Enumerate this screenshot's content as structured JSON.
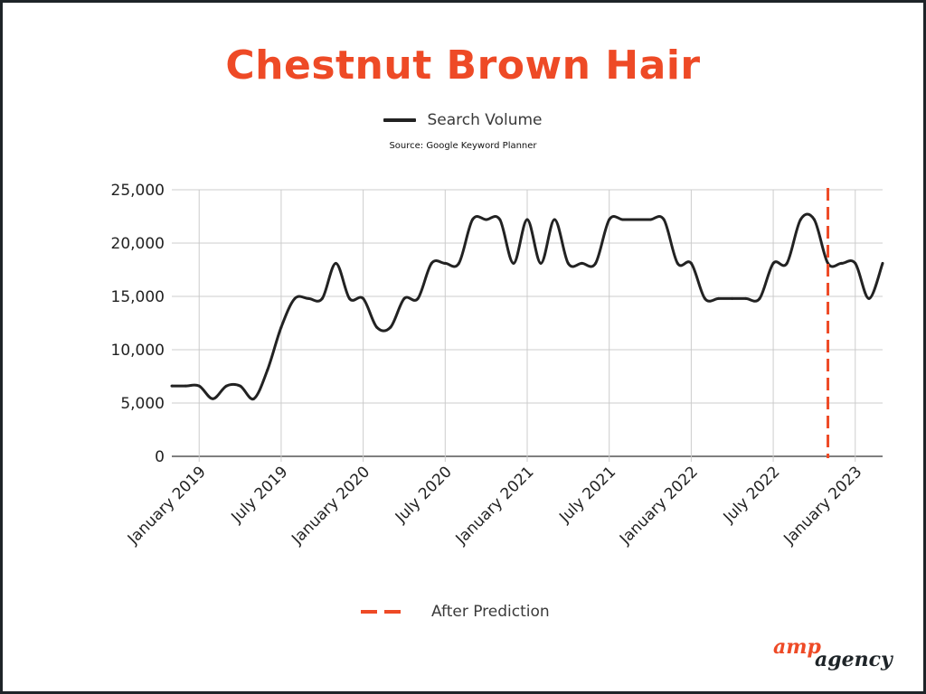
{
  "title": "Chestnut Brown Hair",
  "legend": {
    "series_label": "Search Volume",
    "prediction_label": "After Prediction"
  },
  "source": "Source: Google Keyword Planner",
  "logo": {
    "part1": "amp",
    "part2": "agency"
  },
  "colors": {
    "accent": "#ee4a26",
    "line": "#222222",
    "grid": "#cccccc",
    "axis": "#555555"
  },
  "chart_data": {
    "type": "line",
    "title": "Chestnut Brown Hair",
    "xlabel": "",
    "ylabel": "",
    "ylim": [
      0,
      25000
    ],
    "grid": true,
    "legend_placement": "top-center",
    "y_ticks": [
      "0",
      "5,000",
      "10,000",
      "15,000",
      "20,000",
      "25,000"
    ],
    "x_ticks": [
      "January 2019",
      "July 2019",
      "January 2020",
      "July 2020",
      "January 2021",
      "July 2021",
      "January 2022",
      "July 2022",
      "January 2023"
    ],
    "x": [
      "2018-11",
      "2018-12",
      "2019-01",
      "2019-02",
      "2019-03",
      "2019-04",
      "2019-05",
      "2019-06",
      "2019-07",
      "2019-08",
      "2019-09",
      "2019-10",
      "2019-11",
      "2019-12",
      "2020-01",
      "2020-02",
      "2020-03",
      "2020-04",
      "2020-05",
      "2020-06",
      "2020-07",
      "2020-08",
      "2020-09",
      "2020-10",
      "2020-11",
      "2020-12",
      "2021-01",
      "2021-02",
      "2021-03",
      "2021-04",
      "2021-05",
      "2021-06",
      "2021-07",
      "2021-08",
      "2021-09",
      "2021-10",
      "2021-11",
      "2021-12",
      "2022-01",
      "2022-02",
      "2022-03",
      "2022-04",
      "2022-05",
      "2022-06",
      "2022-07",
      "2022-08",
      "2022-09",
      "2022-10",
      "2022-11",
      "2022-12",
      "2023-01",
      "2023-02",
      "2023-03"
    ],
    "series": [
      {
        "name": "Search Volume",
        "values": [
          6600,
          6600,
          6600,
          5400,
          6600,
          6600,
          5400,
          8100,
          12100,
          14800,
          14800,
          14800,
          18100,
          14800,
          14800,
          12100,
          12100,
          14800,
          14800,
          18100,
          18100,
          18100,
          22200,
          22200,
          22200,
          18100,
          22200,
          18100,
          22200,
          18100,
          18100,
          18100,
          22200,
          22200,
          22200,
          22200,
          22200,
          18100,
          18100,
          14800,
          14800,
          14800,
          14800,
          14800,
          18100,
          18100,
          22200,
          22200,
          18100,
          18100,
          18100,
          14800,
          18100
        ]
      }
    ],
    "prediction_marker": {
      "x": "2022-11",
      "label": "After Prediction"
    }
  }
}
